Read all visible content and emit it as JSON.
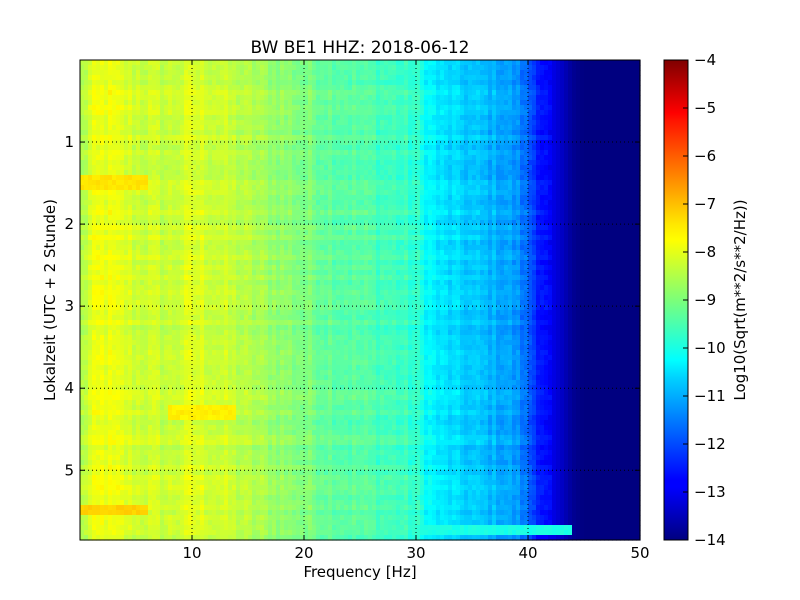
{
  "chart_data": {
    "type": "heatmap",
    "title": "BW BE1 HHZ: 2018-06-12",
    "xlabel": "Frequency [Hz]",
    "ylabel": "Lokalzeit (UTC + 2 Stunde)",
    "xlim": [
      0,
      50
    ],
    "ylim": [
      5.85,
      0
    ],
    "x_ticks": [
      10,
      20,
      30,
      40,
      50
    ],
    "y_ticks": [
      1,
      2,
      3,
      4,
      5
    ],
    "grid": true,
    "colormap": "jet",
    "colorbar": {
      "label": "Log10(Sqrt(m**2/s**2/Hz))",
      "range": [
        -14,
        -4
      ],
      "ticks": [
        -4,
        -5,
        -6,
        -7,
        -8,
        -9,
        -10,
        -11,
        -12,
        -13,
        -14
      ]
    },
    "frequency_profile": {
      "x": [
        0,
        1,
        2,
        3,
        5,
        8,
        10,
        12,
        15,
        18,
        20,
        22,
        25,
        28,
        30,
        31,
        32,
        34,
        36,
        38,
        39,
        40,
        41,
        42,
        43,
        44,
        45,
        50
      ],
      "log10_amplitude": [
        -8.6,
        -8.1,
        -7.9,
        -8.0,
        -8.2,
        -8.3,
        -8.1,
        -8.2,
        -8.5,
        -8.8,
        -9.0,
        -9.2,
        -9.4,
        -9.6,
        -9.8,
        -10.2,
        -10.5,
        -10.7,
        -10.9,
        -11.1,
        -11.3,
        -11.8,
        -12.4,
        -12.9,
        -13.3,
        -13.8,
        -14.0,
        -14.0
      ]
    },
    "time_features": [
      {
        "time": 1.5,
        "frequency_range": [
          0,
          6
        ],
        "log10_amplitude": -7.5
      },
      {
        "time": 4.3,
        "frequency_range": [
          8,
          14
        ],
        "log10_amplitude": -7.6
      },
      {
        "time": 5.5,
        "frequency_range": [
          0,
          6
        ],
        "log10_amplitude": -7.3
      },
      {
        "time": 5.72,
        "frequency_range": [
          20,
          44
        ],
        "log10_amplitude": -10.0
      }
    ]
  }
}
